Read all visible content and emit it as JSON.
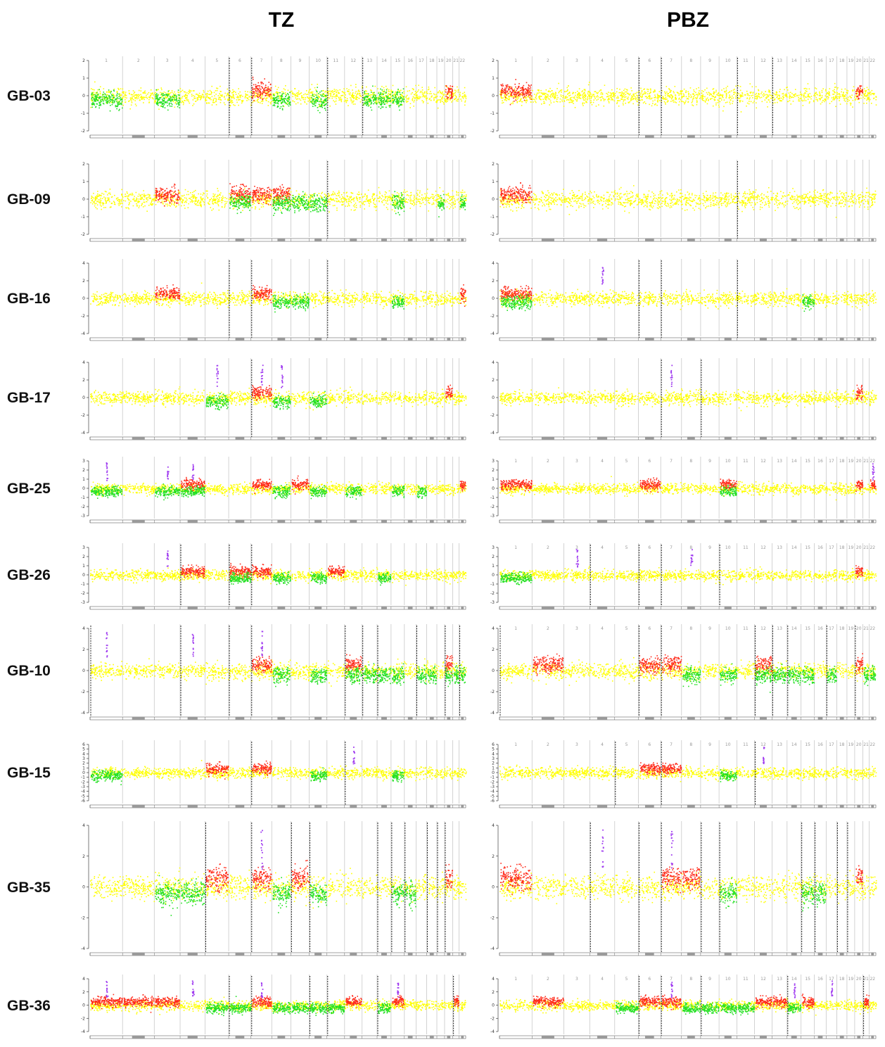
{
  "columns": [
    {
      "key": "TZ",
      "title": "TZ"
    },
    {
      "key": "PBZ",
      "title": "PBZ"
    }
  ],
  "chart_data": {
    "type": "scatter",
    "description_colors": {
      "neutral": "#ffff00",
      "gain": "#ff2a1a",
      "loss": "#22e022",
      "amplification": "#a03cf0"
    },
    "chromosomes": [
      "1",
      "2",
      "3",
      "4",
      "5",
      "6",
      "7",
      "8",
      "9",
      "10",
      "11",
      "12",
      "13",
      "14",
      "15",
      "16",
      "17",
      "18",
      "19",
      "20",
      "21",
      "22"
    ],
    "samples": [
      {
        "id": "GB-03",
        "ylim": [
          -2,
          2
        ],
        "yticks": [
          -2,
          -1,
          0,
          1,
          2
        ],
        "chr_labels": [
          true,
          true
        ],
        "TZ": {
          "gains": [
            "7",
            "20"
          ],
          "losses": [
            "1",
            "3",
            "8",
            "10",
            "13",
            "14",
            "15"
          ],
          "amps": [],
          "dashed": [
            "6",
            "7",
            "11",
            "13"
          ]
        },
        "PBZ": {
          "gains": [
            "1",
            "20"
          ],
          "losses": [],
          "amps": [],
          "dashed": [
            "6",
            "7",
            "11",
            "13"
          ]
        }
      },
      {
        "id": "GB-09",
        "ylim": [
          -2,
          2
        ],
        "yticks": [
          -2,
          -1,
          0,
          1,
          2
        ],
        "chr_labels": [
          false,
          false
        ],
        "TZ": {
          "gains": [
            "3",
            "6",
            "7",
            "8"
          ],
          "losses": [
            "6",
            "8",
            "9",
            "10",
            "15",
            "19",
            "22"
          ],
          "amps": [],
          "dashed": [
            "11"
          ]
        },
        "PBZ": {
          "gains": [
            "1"
          ],
          "losses": [],
          "amps": [],
          "dashed": [
            "11"
          ]
        }
      },
      {
        "id": "GB-16",
        "ylim": [
          -4,
          4
        ],
        "yticks": [
          -4,
          -2,
          0,
          2,
          4
        ],
        "chr_labels": [
          false,
          false
        ],
        "TZ": {
          "gains": [
            "3",
            "7",
            "22"
          ],
          "losses": [
            "8",
            "9",
            "15"
          ],
          "amps": [],
          "dashed": [
            "6",
            "7",
            "11"
          ]
        },
        "PBZ": {
          "gains": [
            "1"
          ],
          "losses": [
            "1",
            "15"
          ],
          "amps": [
            "4"
          ],
          "dashed": [
            "6",
            "7",
            "11"
          ]
        }
      },
      {
        "id": "GB-17",
        "ylim": [
          -4,
          4
        ],
        "yticks": [
          -4,
          -2,
          0,
          2,
          4
        ],
        "chr_labels": [
          false,
          false
        ],
        "TZ": {
          "gains": [
            "7",
            "20"
          ],
          "losses": [
            "5",
            "8",
            "10"
          ],
          "amps": [
            "5",
            "7",
            "8"
          ],
          "dashed": [
            "7"
          ]
        },
        "PBZ": {
          "gains": [
            "20"
          ],
          "losses": [],
          "amps": [
            "7"
          ],
          "dashed": [
            "7",
            "9"
          ]
        }
      },
      {
        "id": "GB-25",
        "ylim": [
          -3,
          3
        ],
        "yticks": [
          -3,
          -2,
          -1,
          0,
          1,
          2,
          3
        ],
        "chr_labels": [
          false,
          true
        ],
        "TZ": {
          "gains": [
            "4",
            "7",
            "9",
            "22"
          ],
          "losses": [
            "1",
            "3",
            "4",
            "8",
            "10",
            "12",
            "15",
            "17"
          ],
          "amps": [
            "1",
            "3",
            "4"
          ],
          "dashed": []
        },
        "PBZ": {
          "gains": [
            "1",
            "6",
            "10",
            "20",
            "22"
          ],
          "losses": [
            "10"
          ],
          "amps": [
            "22"
          ],
          "dashed": []
        }
      },
      {
        "id": "GB-26",
        "ylim": [
          -3,
          3
        ],
        "yticks": [
          -3,
          -2,
          -1,
          0,
          1,
          2,
          3
        ],
        "chr_labels": [
          false,
          true
        ],
        "TZ": {
          "gains": [
            "4",
            "6",
            "7",
            "11"
          ],
          "losses": [
            "6",
            "8",
            "10",
            "14"
          ],
          "amps": [
            "3"
          ],
          "dashed": [
            "4",
            "6",
            "7"
          ]
        },
        "PBZ": {
          "gains": [
            "20"
          ],
          "losses": [
            "1"
          ],
          "amps": [
            "3",
            "8"
          ],
          "dashed": [
            "4",
            "6",
            "7",
            "10"
          ]
        }
      },
      {
        "id": "GB-10",
        "ylim": [
          -4,
          4
        ],
        "yticks": [
          -4,
          -2,
          0,
          2,
          4
        ],
        "chr_labels": [
          false,
          true
        ],
        "TZ": {
          "gains": [
            "7",
            "12",
            "20"
          ],
          "losses": [
            "8",
            "10",
            "12",
            "13",
            "14",
            "15",
            "17",
            "18",
            "20",
            "21",
            "22"
          ],
          "amps": [
            "1",
            "4",
            "7"
          ],
          "dashed": [
            "1",
            "4",
            "6",
            "7",
            "12",
            "13",
            "14",
            "17",
            "20",
            "22"
          ]
        },
        "PBZ": {
          "gains": [
            "2",
            "6",
            "7",
            "12",
            "20"
          ],
          "losses": [
            "8",
            "10",
            "12",
            "13",
            "14",
            "15",
            "17",
            "21",
            "22"
          ],
          "amps": [],
          "dashed": [
            "1",
            "6",
            "7",
            "12",
            "13",
            "14",
            "17",
            "20"
          ]
        }
      },
      {
        "id": "GB-15",
        "ylim": [
          -6,
          6
        ],
        "yticks": [
          -6,
          -5,
          -4,
          -3,
          -2,
          -1,
          0,
          1,
          2,
          3,
          4,
          5,
          6
        ],
        "chr_labels": [
          false,
          true
        ],
        "TZ": {
          "gains": [
            "5",
            "7"
          ],
          "losses": [
            "1",
            "10",
            "15"
          ],
          "amps": [
            "12"
          ],
          "dashed": [
            "7",
            "12"
          ]
        },
        "PBZ": {
          "gains": [
            "6",
            "7"
          ],
          "losses": [
            "10"
          ],
          "amps": [
            "12"
          ],
          "dashed": [
            "5",
            "7",
            "12"
          ]
        }
      },
      {
        "id": "GB-35",
        "ylim": [
          -4,
          4
        ],
        "yticks": [
          -4,
          -2,
          0,
          2,
          4
        ],
        "chr_labels": [
          false,
          false
        ],
        "TZ": {
          "gains": [
            "5",
            "7",
            "9",
            "20"
          ],
          "losses": [
            "3",
            "4",
            "8",
            "10",
            "15",
            "16"
          ],
          "amps": [
            "7"
          ],
          "dashed": [
            "5",
            "7",
            "9",
            "10",
            "14",
            "15",
            "16",
            "18",
            "19",
            "20"
          ]
        },
        "PBZ": {
          "gains": [
            "1",
            "7",
            "8",
            "20"
          ],
          "losses": [
            "10",
            "15",
            "16"
          ],
          "amps": [
            "4",
            "7"
          ],
          "dashed": [
            "4",
            "6",
            "7",
            "9",
            "10",
            "15",
            "16",
            "18",
            "19"
          ]
        }
      },
      {
        "id": "GB-36",
        "ylim": [
          -4,
          4
        ],
        "yticks": [
          -4,
          -2,
          0,
          2,
          4
        ],
        "chr_labels": [
          false,
          true
        ],
        "TZ": {
          "gains": [
            "1",
            "2",
            "3",
            "7",
            "12",
            "15",
            "21"
          ],
          "losses": [
            "5",
            "6",
            "8",
            "9",
            "10",
            "11",
            "14"
          ],
          "amps": [
            "1",
            "4",
            "7",
            "15"
          ],
          "dashed": [
            "6",
            "7",
            "10",
            "11",
            "14",
            "21"
          ]
        },
        "PBZ": {
          "gains": [
            "2",
            "6",
            "7",
            "12",
            "13",
            "15",
            "21"
          ],
          "losses": [
            "5",
            "8",
            "9",
            "10",
            "11",
            "14"
          ],
          "amps": [
            "7",
            "14",
            "17"
          ],
          "dashed": [
            "6",
            "7",
            "9",
            "14",
            "21"
          ]
        }
      }
    ]
  }
}
